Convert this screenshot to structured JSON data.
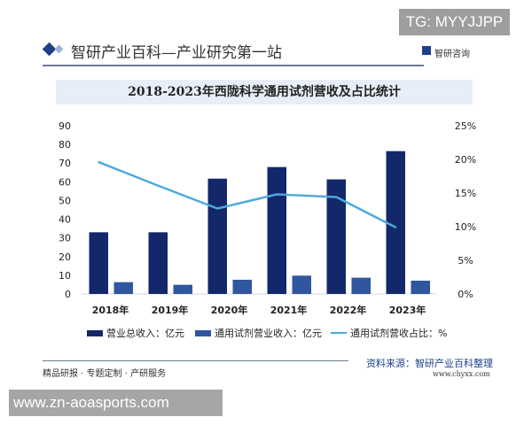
{
  "overlay_top": "TG: MYYJJPP",
  "overlay_bottom": "www.zn-aoasports.com",
  "header": {
    "title": "智研产业百科—产业研究第一站",
    "brand": "智研咨询"
  },
  "footer": {
    "slogan": "精品研报 · 专题定制 · 产研服务",
    "source": "资料来源：智研产业百科整理",
    "site": "www.chyxx.com"
  },
  "colors": {
    "total": "#13286b",
    "reagent": "#2f569e",
    "ratio": "#4ea9dc"
  },
  "chart_data": {
    "type": "bar+line",
    "title": "2018-2023年西陇科学通用试剂营收及占比统计",
    "categories": [
      "2018年",
      "2019年",
      "2020年",
      "2021年",
      "2022年",
      "2023年"
    ],
    "left_axis": {
      "ylim": [
        0,
        90
      ],
      "ticks": [
        "0",
        "10",
        "20",
        "30",
        "40",
        "50",
        "60",
        "70",
        "80",
        "90"
      ]
    },
    "right_axis": {
      "ylim": [
        0,
        25
      ],
      "ticks": [
        "0%",
        "5%",
        "10%",
        "15%",
        "20%",
        "25%"
      ]
    },
    "series": [
      {
        "name": "营业总收入：亿元",
        "type": "bar",
        "axis": "left",
        "values": [
          33,
          33,
          61.7,
          67.9,
          61.3,
          76.4
        ]
      },
      {
        "name": "通用试剂营业收入：亿元",
        "type": "bar",
        "axis": "left",
        "values": [
          6.3,
          4.9,
          7.6,
          9.8,
          8.7,
          7.1
        ]
      },
      {
        "name": "通用试剂营收占比：%",
        "type": "line",
        "axis": "right",
        "values": [
          19.6,
          16.1,
          12.7,
          14.8,
          14.4,
          9.9
        ]
      }
    ],
    "grid": false,
    "legend": "bottom"
  }
}
